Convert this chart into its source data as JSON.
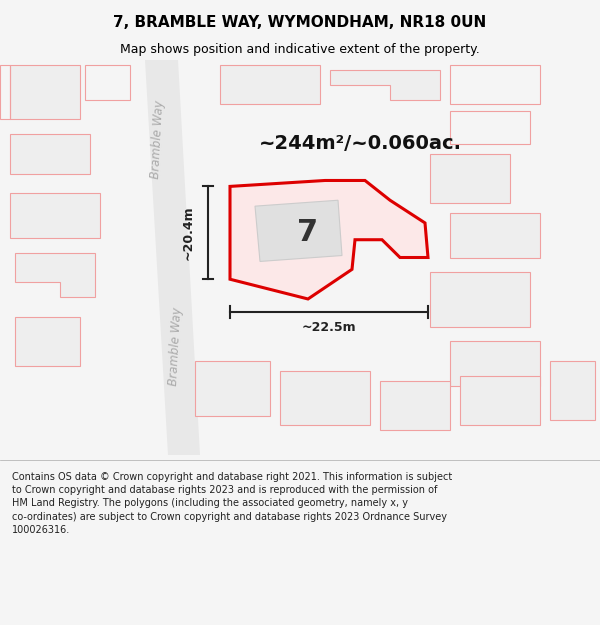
{
  "title": "7, BRAMBLE WAY, WYMONDHAM, NR18 0UN",
  "subtitle": "Map shows position and indicative extent of the property.",
  "area_text": "~244m²/~0.060ac.",
  "dim_horizontal": "~22.5m",
  "dim_vertical": "~20.4m",
  "plot_number": "7",
  "copyright_text": "Contains OS data © Crown copyright and database right 2021. This information is subject\nto Crown copyright and database rights 2023 and is reproduced with the permission of\nHM Land Registry. The polygons (including the associated geometry, namely x, y\nco-ordinates) are subject to Crown copyright and database rights 2023 Ordnance Survey\n100026316.",
  "bg_color": "#f5f5f5",
  "map_bg": "#ffffff",
  "building_outline_color": "#f0a0a0",
  "highlight_color": "#dd0000",
  "house_fill": "#e0e0e0",
  "dim_line_color": "#222222",
  "title_color": "#000000",
  "footer_bg": "#f0f0f0",
  "footer_color": "#222222"
}
